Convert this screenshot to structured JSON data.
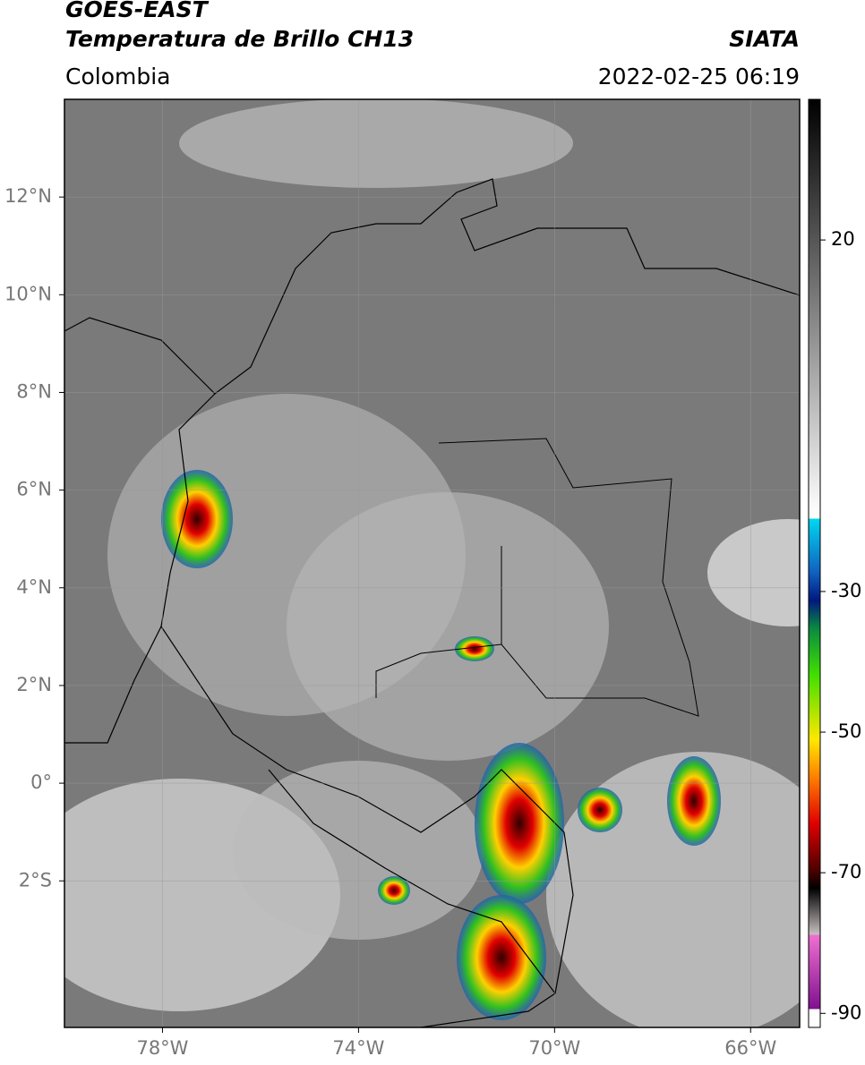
{
  "header": {
    "satellite": "GOES-EAST",
    "product": "Temperatura de Brillo CH13",
    "agency": "SIATA",
    "region": "Colombia",
    "datetime": "2022-02-25 06:19"
  },
  "map": {
    "lonlim": [
      -80,
      -65
    ],
    "latlim": [
      -5,
      14
    ],
    "lon_ticks": [
      {
        "value": -78,
        "label": "78°W"
      },
      {
        "value": -74,
        "label": "74°W"
      },
      {
        "value": -70,
        "label": "70°W"
      },
      {
        "value": -66,
        "label": "66°W"
      }
    ],
    "lat_ticks": [
      {
        "value": 12,
        "label": "12°N"
      },
      {
        "value": 10,
        "label": "10°N"
      },
      {
        "value": 8,
        "label": "8°N"
      },
      {
        "value": 6,
        "label": "6°N"
      },
      {
        "value": 4,
        "label": "4°N"
      },
      {
        "value": 2,
        "label": "2°N"
      },
      {
        "value": 0,
        "label": "0°"
      },
      {
        "value": -2,
        "label": "2°S"
      }
    ]
  },
  "colorbar": {
    "lim": [
      -92,
      40
    ],
    "ticks": [
      20,
      -30,
      -50,
      -70,
      -90
    ]
  }
}
